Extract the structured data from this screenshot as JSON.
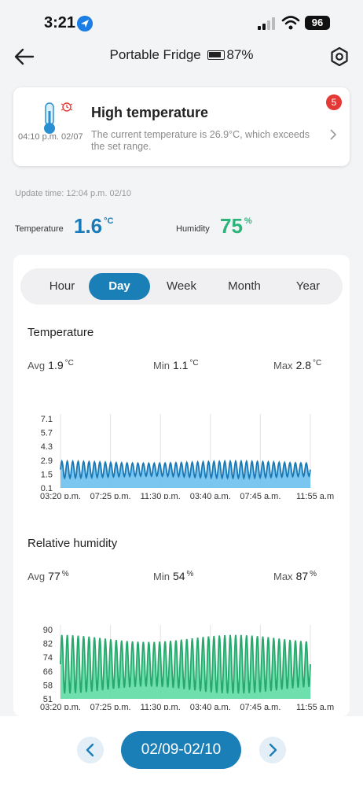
{
  "status_bar": {
    "time": "3:21",
    "battery": "96"
  },
  "nav": {
    "title": "Portable Fridge",
    "battery_percent": "87%"
  },
  "alert": {
    "title": "High temperature",
    "description": "The current temperature is 26.9°C, which exceeds the set range.",
    "time": "04:10 p.m. 02/07",
    "badge_count": "5"
  },
  "update_time": "Update time: 12:04 p.m. 02/10",
  "readings": {
    "temperature": {
      "label": "Temperature",
      "value": "1.6",
      "unit": "°C"
    },
    "humidity": {
      "label": "Humidity",
      "value": "75",
      "unit": "%"
    }
  },
  "tabs": [
    {
      "label": "Hour"
    },
    {
      "label": "Day"
    },
    {
      "label": "Week"
    },
    {
      "label": "Month"
    },
    {
      "label": "Year"
    }
  ],
  "active_tab": "Day",
  "temperature_section": {
    "title": "Temperature",
    "avg": {
      "label": "Avg",
      "value": "1.9",
      "unit": "°C"
    },
    "min": {
      "label": "Min",
      "value": "1.1",
      "unit": "°C"
    },
    "max": {
      "label": "Max",
      "value": "2.8",
      "unit": "°C"
    }
  },
  "humidity_section": {
    "title": "Relative humidity",
    "avg": {
      "label": "Avg",
      "value": "77",
      "unit": "%"
    },
    "min": {
      "label": "Min",
      "value": "54",
      "unit": "%"
    },
    "max": {
      "label": "Max",
      "value": "87",
      "unit": "%"
    }
  },
  "date_range": "02/09-02/10",
  "colors": {
    "accent": "#1b7fb7",
    "temp_line": "#1a78b4",
    "temp_fill": "#6cc0ee",
    "hum_line": "#27a86d",
    "hum_fill": "#5fdca4",
    "alert_badge": "#e53935"
  },
  "chart_data": [
    {
      "type": "area",
      "y_ticks": [
        "7.1",
        "5.7",
        "4.3",
        "2.9",
        "1.5",
        "0.1"
      ],
      "ylim": [
        0.1,
        7.1
      ],
      "x_ticks": [
        "03:20 p.m.",
        "07:25 p.m.",
        "11:30 p.m.",
        "03:40 a.m.",
        "07:45 a.m.",
        "11:55 a.m"
      ],
      "series": [
        {
          "min": 1.1,
          "max": 2.8,
          "cycles": 46
        }
      ]
    },
    {
      "type": "area",
      "y_ticks": [
        "90",
        "82",
        "74",
        "66",
        "58",
        "51"
      ],
      "ylim": [
        51,
        90
      ],
      "x_ticks": [
        "03:20 p.m.",
        "07:25 p.m.",
        "11:30 p.m.",
        "03:40 a.m.",
        "07:45 a.m.",
        "11:55 a.m"
      ],
      "series": [
        {
          "min": 54,
          "max": 87,
          "cycles": 46
        }
      ]
    }
  ]
}
